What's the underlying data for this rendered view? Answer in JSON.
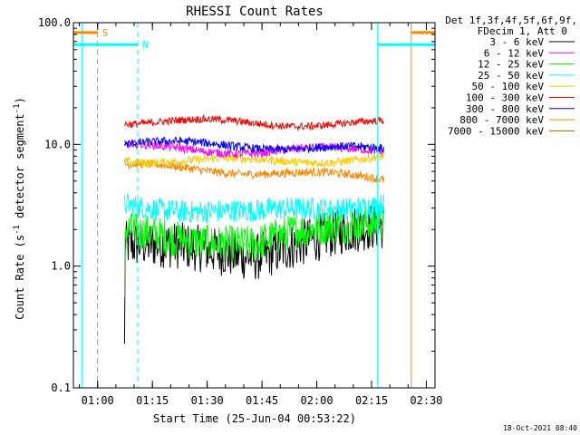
{
  "chart_data": {
    "type": "line",
    "title": "RHESSI Count Rates",
    "xlabel": "Start Time (25-Jun-04 00:53:22)",
    "ylabel_main": "Count Rate (s",
    "ylabel_sup1": "-1",
    "ylabel_mid": " detector segment",
    "ylabel_sup2": "-1",
    "ylabel_end": ")",
    "yscale": "log",
    "ylim": [
      0.1,
      100.0
    ],
    "y_ticks": [
      {
        "value": 0.1,
        "label": "0.1"
      },
      {
        "value": 1.0,
        "label": "1.0"
      },
      {
        "value": 10.0,
        "label": "10.0"
      },
      {
        "value": 100.0,
        "label": "100.0"
      }
    ],
    "x_units": "minutes after 00:53:22",
    "xlim": [
      0.0,
      99.0
    ],
    "x_ticks": [
      {
        "value": 6.633,
        "label": "01:00"
      },
      {
        "value": 21.633,
        "label": "01:15"
      },
      {
        "value": 36.633,
        "label": "01:30"
      },
      {
        "value": 51.633,
        "label": "01:45"
      },
      {
        "value": 66.633,
        "label": "02:00"
      },
      {
        "value": 81.633,
        "label": "02:15"
      },
      {
        "value": 96.633,
        "label": "02:30"
      }
    ],
    "data_window": [
      14.0,
      85.0
    ],
    "legend_header": [
      "Det 1f,3f,4f,5f,6f,9f,",
      "FDecim 1, Att 0"
    ],
    "series": [
      {
        "name": "3 - 6 keV",
        "color": "#000000",
        "level_start": 1.5,
        "level_mid": 1.25,
        "level_end": 2.1,
        "noise": 0.45,
        "start_drop": 0.23
      },
      {
        "name": "6 - 12 keV",
        "color": "#ff00ff",
        "level_start": 9.5,
        "level_mid": 8.8,
        "level_end": 9.0,
        "noise": 0.08
      },
      {
        "name": "12 - 25 keV",
        "color": "#00ff00",
        "level_start": 1.9,
        "level_mid": 1.5,
        "level_end": 2.5,
        "noise": 0.35,
        "start_drop": 0.55
      },
      {
        "name": "25 - 50 keV",
        "color": "#00ffff",
        "level_start": 3.2,
        "level_mid": 2.7,
        "level_end": 3.3,
        "noise": 0.22
      },
      {
        "name": "50 - 100 keV",
        "color": "#ffcc00",
        "level_start": 7.6,
        "level_mid": 7.2,
        "level_end": 7.8,
        "noise": 0.08
      },
      {
        "name": "100 - 300 keV",
        "color": "#ff0000",
        "level_start": 15.5,
        "level_mid": 15.0,
        "level_end": 14.8,
        "noise": 0.07
      },
      {
        "name": "300 - 800 keV",
        "color": "#0000ff",
        "level_start": 10.2,
        "level_mid": 9.8,
        "level_end": 8.9,
        "noise": 0.08
      },
      {
        "name": "800 - 7000 keV",
        "color": "#ff8800",
        "level_start": 6.6,
        "level_mid": 6.0,
        "level_end": 5.2,
        "noise": 0.08
      },
      {
        "name": "7000 - 15000 keV",
        "color": "#996600",
        "level_start": 0,
        "level_mid": 0,
        "level_end": 0,
        "noise": 0
      }
    ],
    "flags": [
      {
        "label": "S",
        "color": "#ff8800",
        "level": 83.0,
        "segments": [
          [
            -5.0,
            6.6
          ],
          [
            92.5,
            104.0
          ]
        ],
        "hidden": false
      },
      {
        "label": "N",
        "color": "#00ffff",
        "level": 66.0,
        "segments": [
          [
            -5.0,
            17.6
          ],
          [
            83.3,
            104.0
          ]
        ],
        "hidden": false
      }
    ],
    "vlines": [
      {
        "x": 6.6,
        "color": "#ff8800",
        "style": "dashed"
      },
      {
        "x": 17.6,
        "color": "#00ffff",
        "style": "dashed"
      },
      {
        "x": 83.3,
        "color": "#00ffff",
        "style": "solid"
      },
      {
        "x": 92.5,
        "color": "#ff8800",
        "style": "solid"
      },
      {
        "x": 101.0,
        "color": "#ff8800",
        "style": "dashed"
      },
      {
        "x": 101.3,
        "color": "#00ffff",
        "style": "dashed"
      },
      {
        "x": 2.3,
        "color": "#00ffff",
        "style": "solid"
      }
    ]
  },
  "footer": {
    "timestamp": "18-Oct-2021 08:40"
  }
}
